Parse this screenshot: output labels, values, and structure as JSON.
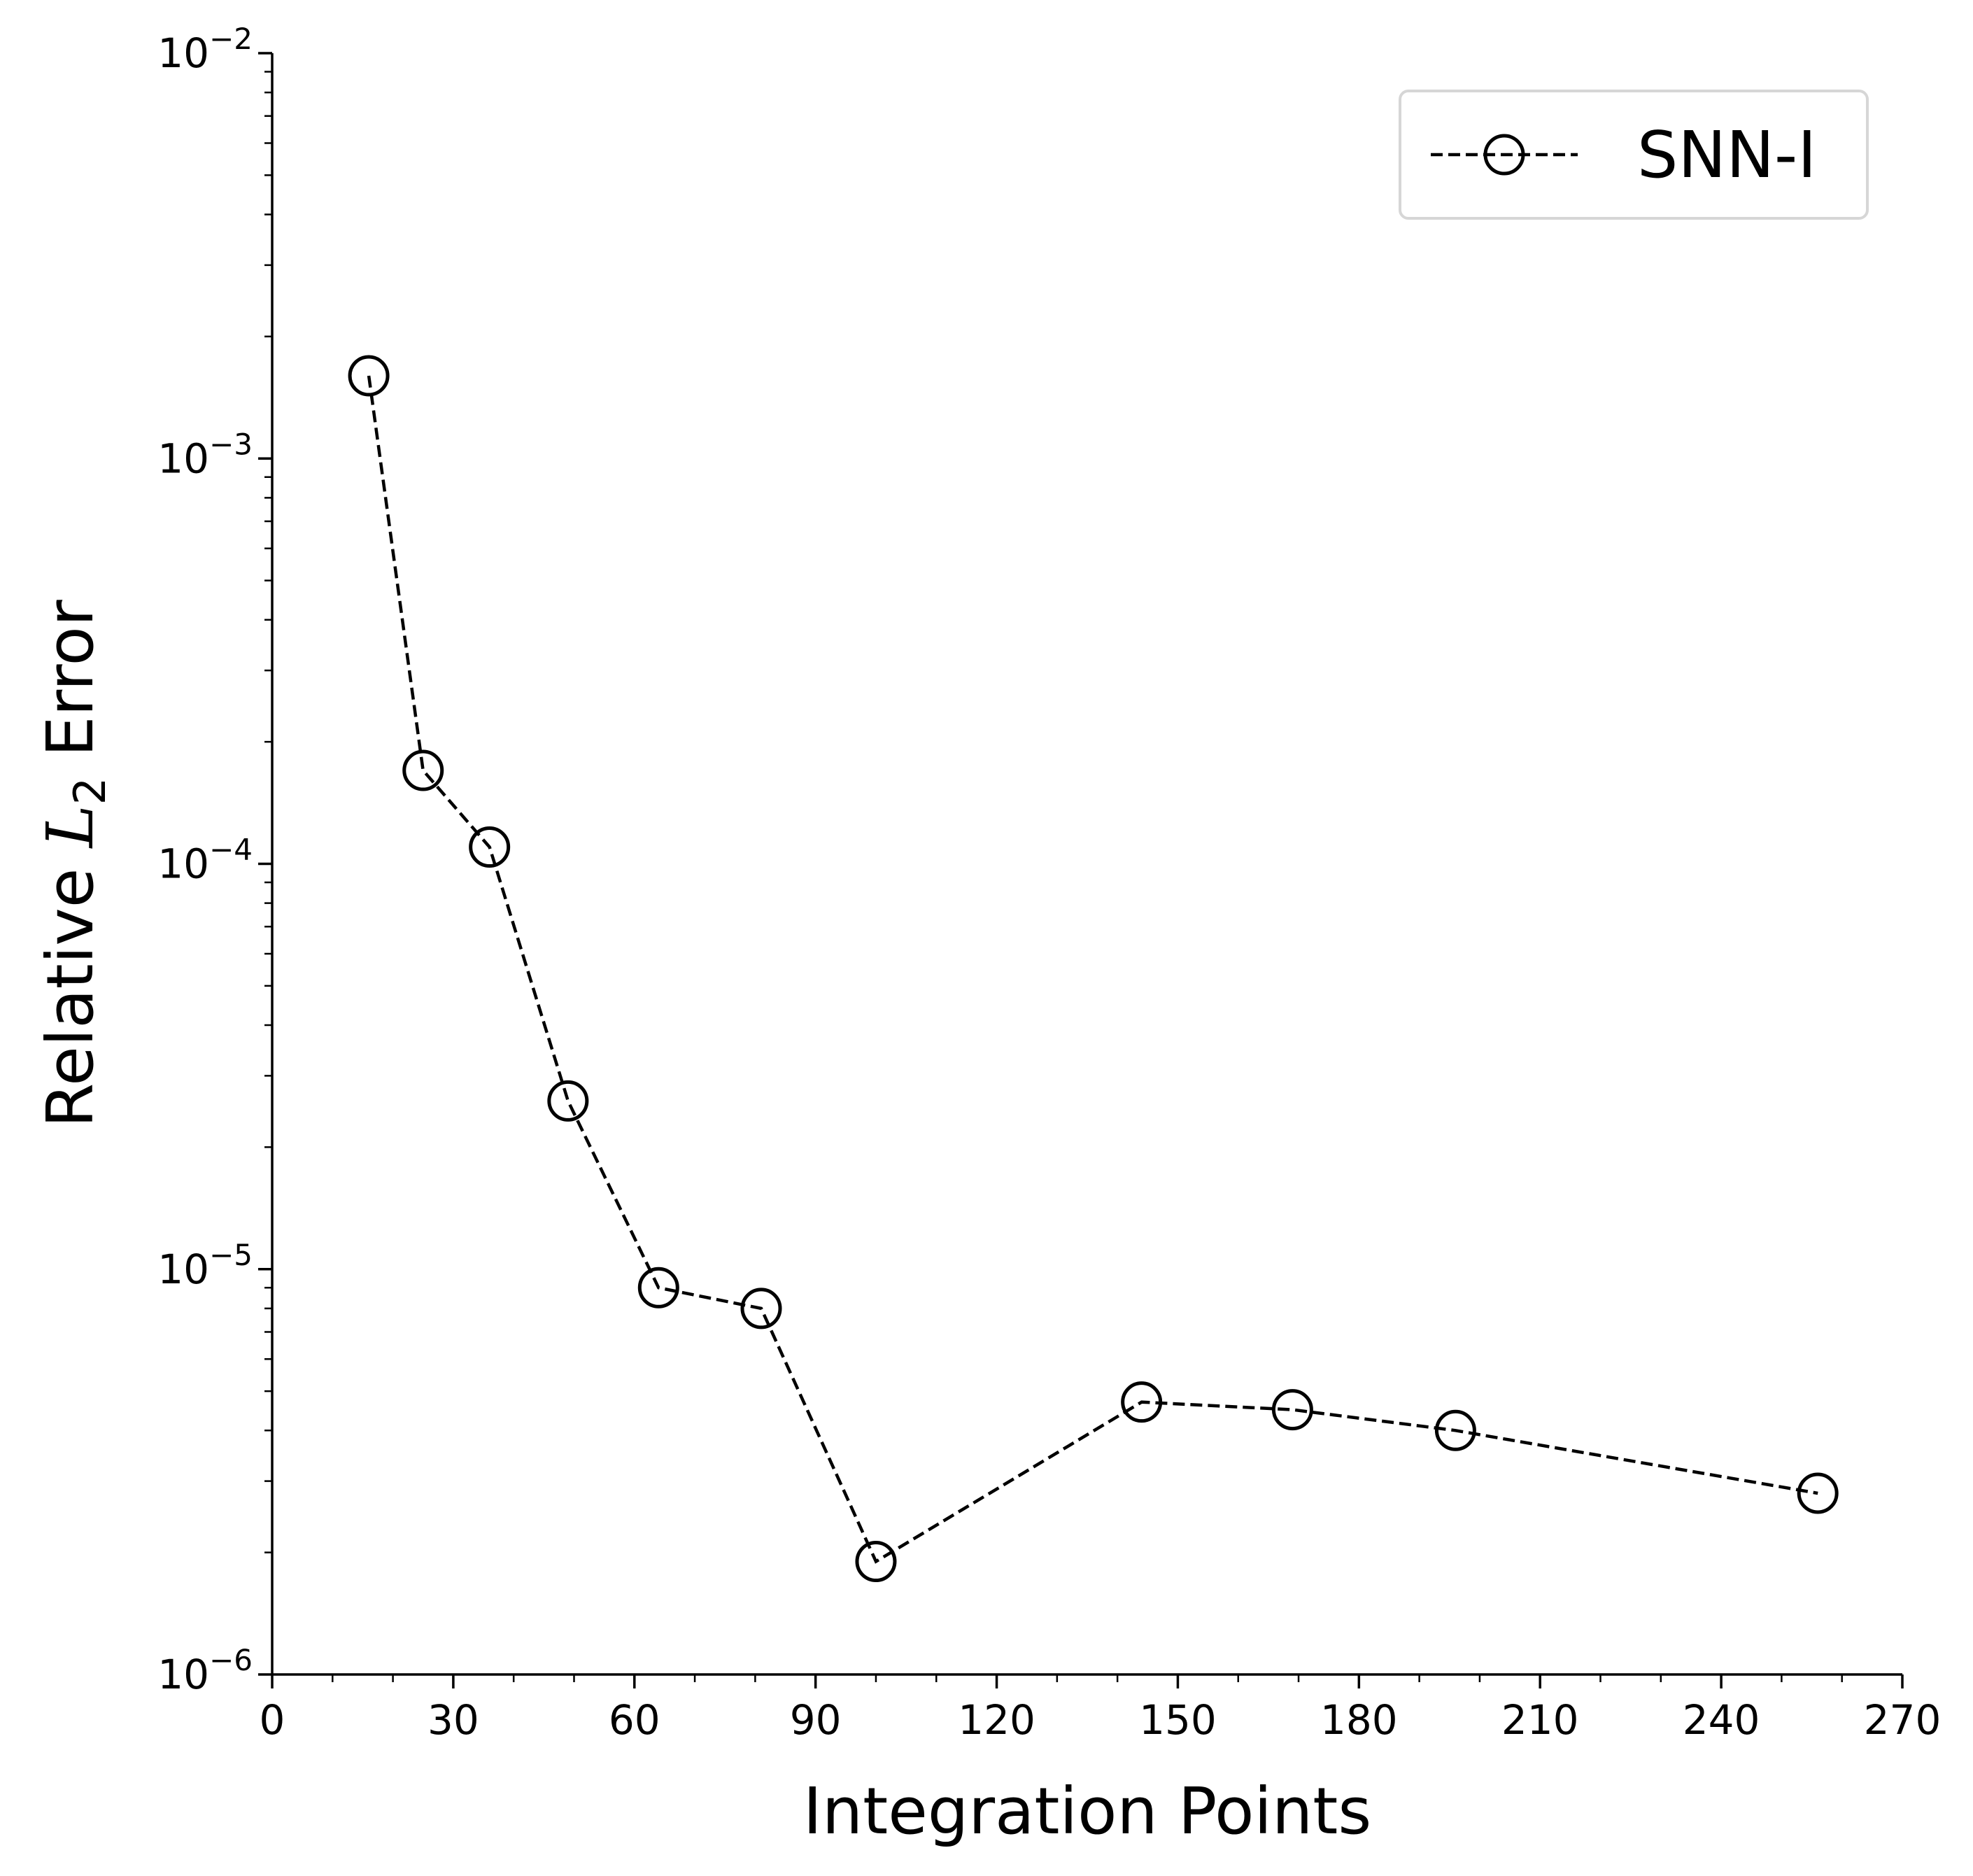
{
  "chart_data": {
    "type": "line",
    "title": "",
    "xlabel": "Integration Points",
    "ylabel_prefix": "Relative ",
    "ylabel_var": "L",
    "ylabel_sub": "2",
    "ylabel_suffix": " Error",
    "xlim": [
      0,
      270
    ],
    "ylim": [
      1e-06,
      0.01
    ],
    "yscale": "log",
    "x_ticks": [
      0,
      30,
      60,
      90,
      120,
      150,
      180,
      210,
      240,
      270
    ],
    "x_tick_labels": [
      "0",
      "30",
      "60",
      "90",
      "120",
      "150",
      "180",
      "210",
      "240",
      "270"
    ],
    "y_ticks": [
      1e-06,
      1e-05,
      0.0001,
      0.001,
      0.01
    ],
    "y_tick_base": "10",
    "y_tick_exponents": [
      "−6",
      "−5",
      "−4",
      "−3",
      "−2"
    ],
    "grid": false,
    "legend_position": "top-right",
    "series": [
      {
        "name": "SNN-I",
        "line_style": "dashed",
        "marker": "open-circle",
        "color": "#000000",
        "x": [
          16,
          25,
          36,
          49,
          64,
          81,
          100,
          144,
          169,
          196,
          256
        ],
        "y": [
          0.0016,
          0.00017,
          0.00011,
          2.6e-05,
          9e-06,
          8e-06,
          1.9e-06,
          4.7e-06,
          4.5e-06,
          4e-06,
          2.8e-06
        ]
      }
    ]
  }
}
